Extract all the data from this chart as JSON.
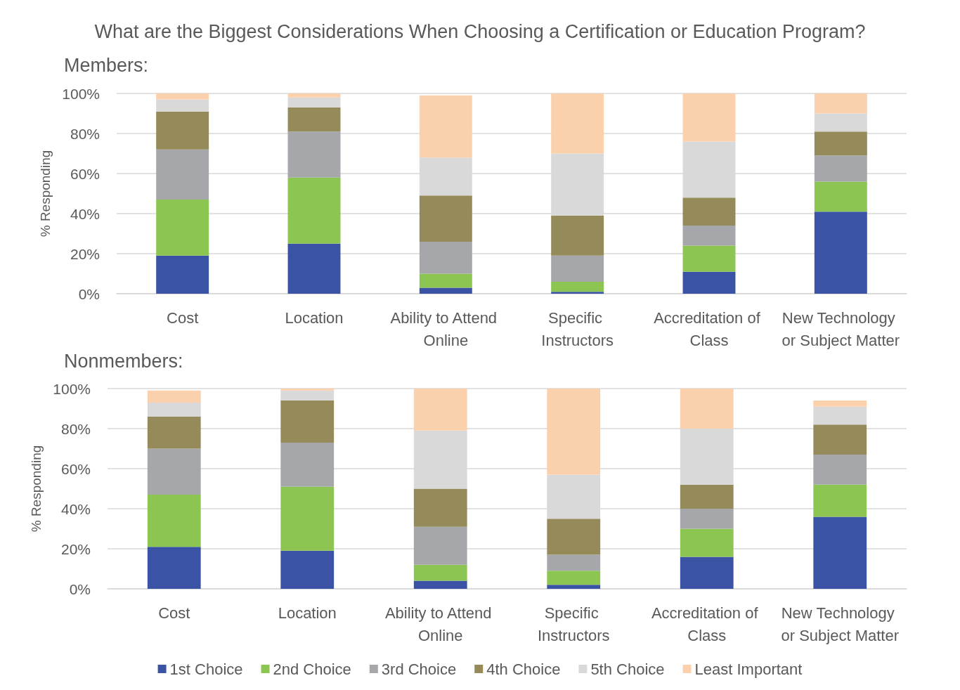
{
  "chart_data": [
    {
      "type": "bar",
      "title": "What are the Biggest Considerations When Choosing a Certification or Education Program?",
      "subtitle": "Members:",
      "ylabel": "% Responding",
      "categories": [
        "Cost",
        "Location",
        "Ability to Attend Online",
        "Specific Instructors",
        "Accreditation of Class",
        "New Technology or Subject Matter"
      ],
      "series": [
        {
          "color": "#3a53a4",
          "values": [
            19,
            25,
            3,
            1,
            11,
            41
          ]
        },
        {
          "color": "#8dc553",
          "values": [
            28,
            33,
            7,
            5,
            13,
            15
          ]
        },
        {
          "color": "#a5a7aa",
          "values": [
            25,
            23,
            16,
            13,
            10,
            13
          ]
        },
        {
          "color": "#948a5a",
          "values": [
            19,
            12,
            23,
            20,
            14,
            12
          ]
        },
        {
          "color": "#d9d9d9",
          "values": [
            6,
            5,
            19,
            31,
            28,
            9
          ]
        },
        {
          "color": "#fbd0ad",
          "values": [
            3,
            2,
            31,
            30,
            24,
            10
          ]
        }
      ],
      "stacked": true,
      "ylim": [
        0,
        100
      ],
      "yticks": [
        {
          "value": 0,
          "label": "0%"
        },
        {
          "value": 20,
          "label": "20%"
        },
        {
          "value": 40,
          "label": "40%"
        },
        {
          "value": 60,
          "label": "60%"
        },
        {
          "value": 80,
          "label": "80%"
        },
        {
          "value": 100,
          "label": "100%"
        }
      ],
      "grid": "y"
    },
    {
      "type": "bar",
      "subtitle": "Nonmembers:",
      "ylabel": "% Responding",
      "categories": [
        "Cost",
        "Location",
        "Ability to Attend Online",
        "Specific Instructors",
        "Accreditation of Class",
        "New Technology or Subject Matter"
      ],
      "series": [
        {
          "name": "1st Choice",
          "color": "#3a53a4",
          "values": [
            21,
            19,
            4,
            2,
            16,
            36
          ]
        },
        {
          "name": "2nd Choice",
          "color": "#8dc553",
          "values": [
            26,
            32,
            8,
            7,
            14,
            16
          ]
        },
        {
          "name": "3rd Choice",
          "color": "#a5a7aa",
          "values": [
            23,
            22,
            19,
            8,
            10,
            15
          ]
        },
        {
          "name": "4th Choice",
          "color": "#948a5a",
          "values": [
            16,
            21,
            19,
            18,
            12,
            15
          ]
        },
        {
          "name": "5th Choice",
          "color": "#d9d9d9",
          "values": [
            7,
            5,
            29,
            22,
            28,
            9
          ]
        },
        {
          "name": "Least Important",
          "color": "#fbd0ad",
          "values": [
            6,
            1,
            21,
            43,
            20,
            3
          ]
        }
      ],
      "stacked": true,
      "ylim": [
        0,
        100
      ],
      "yticks": [
        {
          "value": 0,
          "label": "0%"
        },
        {
          "value": 20,
          "label": "20%"
        },
        {
          "value": 40,
          "label": "40%"
        },
        {
          "value": 60,
          "label": "60%"
        },
        {
          "value": 80,
          "label": "80%"
        },
        {
          "value": 100,
          "label": "100%"
        }
      ],
      "grid": "y",
      "legend": "bottom"
    }
  ]
}
